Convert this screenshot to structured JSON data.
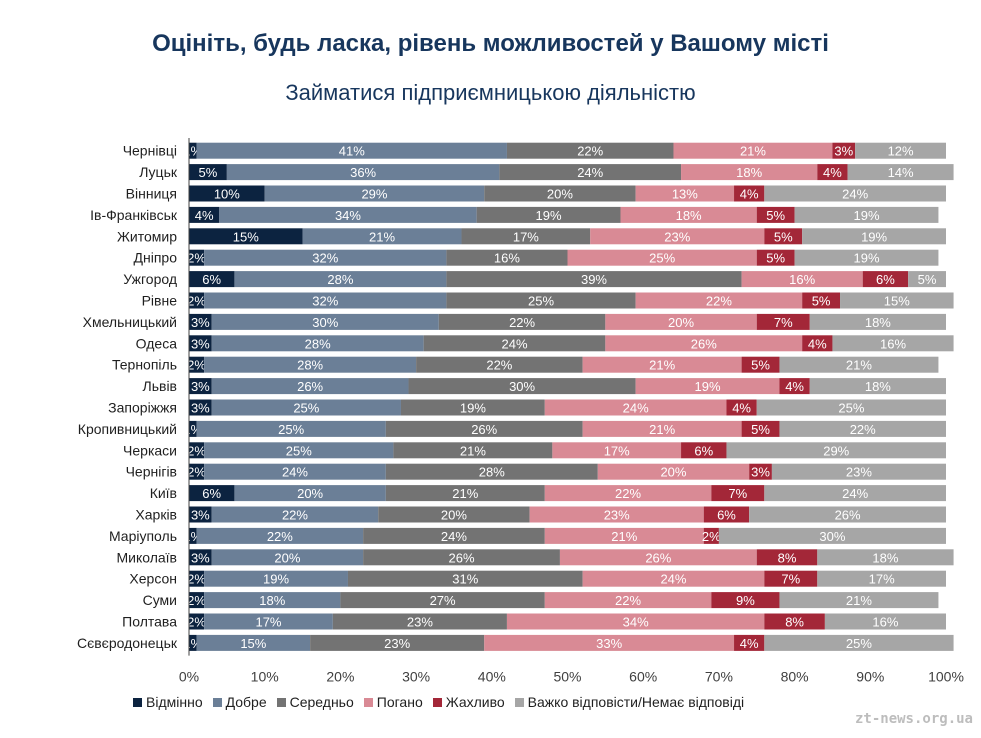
{
  "title": "Оцініть, будь ласка, рівень можливостей у Вашому місті",
  "subtitle": "Займатися підприємницькою діяльністю",
  "watermark": "zt-news.org.ua",
  "chart_data": {
    "type": "bar",
    "orientation": "horizontal-stacked-100",
    "categories": [
      "Чернівці",
      "Луцьк",
      "Вінниця",
      "Ів-Франківськ",
      "Житомир",
      "Дніпро",
      "Ужгород",
      "Рівне",
      "Хмельницький",
      "Одеса",
      "Тернопіль",
      "Львів",
      "Запоріжжя",
      "Кропивницький",
      "Черкаси",
      "Чернігів",
      "Київ",
      "Харків",
      "Маріуполь",
      "Миколаїв",
      "Херсон",
      "Суми",
      "Полтава",
      "Сєвєродонецьк"
    ],
    "series": [
      {
        "name": "Відмінно",
        "color": "#0c2340",
        "values": [
          1,
          5,
          10,
          4,
          15,
          2,
          6,
          2,
          3,
          3,
          2,
          3,
          3,
          1,
          2,
          2,
          6,
          3,
          1,
          3,
          2,
          2,
          2,
          1
        ]
      },
      {
        "name": "Добре",
        "color": "#6b7f97",
        "values": [
          41,
          36,
          29,
          34,
          21,
          32,
          28,
          32,
          30,
          28,
          28,
          26,
          25,
          25,
          25,
          24,
          20,
          22,
          22,
          20,
          19,
          18,
          17,
          15
        ]
      },
      {
        "name": "Середньо",
        "color": "#737373",
        "values": [
          22,
          24,
          20,
          19,
          17,
          16,
          39,
          25,
          22,
          24,
          22,
          30,
          19,
          26,
          21,
          28,
          21,
          20,
          24,
          26,
          31,
          27,
          23,
          23
        ]
      },
      {
        "name": "Погано",
        "color": "#d98a95",
        "values": [
          21,
          18,
          13,
          18,
          23,
          25,
          16,
          22,
          20,
          26,
          21,
          19,
          24,
          21,
          17,
          20,
          22,
          23,
          21,
          26,
          24,
          22,
          34,
          33
        ]
      },
      {
        "name": "Жахливо",
        "color": "#a32738",
        "values": [
          3,
          4,
          4,
          5,
          5,
          5,
          6,
          5,
          7,
          4,
          5,
          4,
          4,
          5,
          6,
          3,
          7,
          6,
          2,
          8,
          7,
          9,
          8,
          4
        ]
      },
      {
        "name": "Важко відповісти/Немає відповіді",
        "color": "#a6a6a6",
        "values": [
          12,
          14,
          24,
          19,
          19,
          19,
          5,
          15,
          18,
          16,
          21,
          18,
          25,
          22,
          29,
          23,
          24,
          26,
          30,
          18,
          17,
          21,
          16,
          25
        ]
      }
    ],
    "value_suffix": "%",
    "xlim": [
      0,
      100
    ],
    "xticks": [
      "0%",
      "10%",
      "20%",
      "30%",
      "40%",
      "50%",
      "60%",
      "70%",
      "80%",
      "90%",
      "100%"
    ],
    "legend_position": "bottom"
  }
}
